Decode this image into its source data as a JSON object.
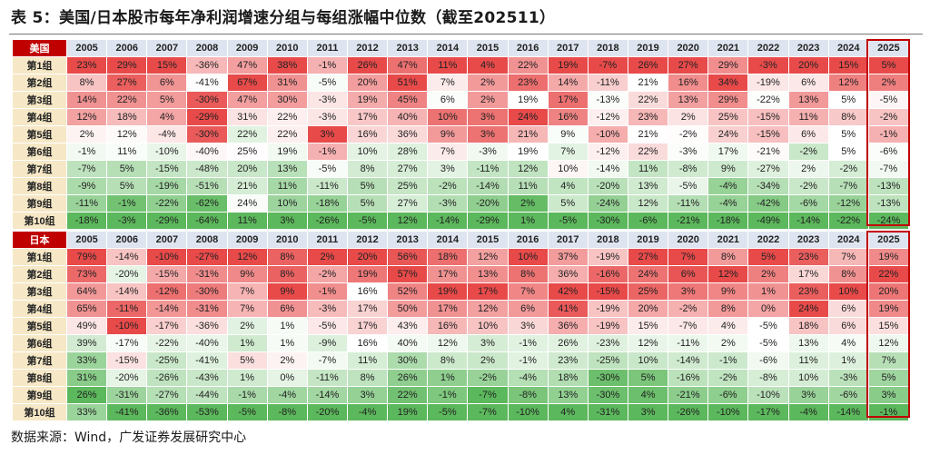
{
  "title": "表 5：美国/日本股市每年净利润增速分组与每组涨幅中位数（截至202511）",
  "source": "数据来源：Wind，广发证券发展研究中心",
  "colors": {
    "corner": "#c00000",
    "header": "#dfe5f0",
    "row_label": "#f6e8c6",
    "high": "#e84a4a",
    "low": "#5cb85c",
    "mid": "#ffffff",
    "highlight_border": "#c00000"
  },
  "years": [
    "2005",
    "2006",
    "2007",
    "2008",
    "2009",
    "2010",
    "2011",
    "2012",
    "2013",
    "2014",
    "2015",
    "2016",
    "2017",
    "2018",
    "2019",
    "2020",
    "2021",
    "2022",
    "2023",
    "2024",
    "2025"
  ],
  "groups": [
    "第1组",
    "第2组",
    "第3组",
    "第4组",
    "第5组",
    "第6组",
    "第7组",
    "第8组",
    "第9组",
    "第10组"
  ],
  "tables": [
    {
      "label": "美国",
      "rows": [
        [
          "23%",
          "29%",
          "15%",
          "-36%",
          "47%",
          "38%",
          "-1%",
          "26%",
          "47%",
          "11%",
          "4%",
          "22%",
          "19%",
          "-7%",
          "26%",
          "27%",
          "29%",
          "-3%",
          "20%",
          "15%",
          "5%"
        ],
        [
          "8%",
          "27%",
          "6%",
          "-41%",
          "67%",
          "31%",
          "-5%",
          "20%",
          "51%",
          "7%",
          "2%",
          "23%",
          "14%",
          "-11%",
          "21%",
          "16%",
          "34%",
          "-19%",
          "6%",
          "12%",
          "2%"
        ],
        [
          "14%",
          "22%",
          "5%",
          "-30%",
          "47%",
          "30%",
          "-3%",
          "19%",
          "45%",
          "6%",
          "2%",
          "19%",
          "17%",
          "-13%",
          "22%",
          "13%",
          "29%",
          "-22%",
          "13%",
          "5%",
          "-5%"
        ],
        [
          "12%",
          "18%",
          "4%",
          "-29%",
          "31%",
          "22%",
          "-3%",
          "17%",
          "40%",
          "10%",
          "3%",
          "24%",
          "16%",
          "-12%",
          "23%",
          "2%",
          "25%",
          "-15%",
          "11%",
          "8%",
          "-2%"
        ],
        [
          "2%",
          "12%",
          "-4%",
          "-30%",
          "22%",
          "22%",
          "3%",
          "16%",
          "36%",
          "9%",
          "3%",
          "21%",
          "9%",
          "-10%",
          "21%",
          "-2%",
          "24%",
          "-15%",
          "6%",
          "5%",
          "-1%"
        ],
        [
          "-1%",
          "11%",
          "-10%",
          "-40%",
          "25%",
          "19%",
          "-1%",
          "10%",
          "28%",
          "7%",
          "-3%",
          "19%",
          "7%",
          "-12%",
          "22%",
          "-3%",
          "17%",
          "-21%",
          "-2%",
          "5%",
          "-6%"
        ],
        [
          "-7%",
          "5%",
          "-15%",
          "-48%",
          "20%",
          "13%",
          "-5%",
          "8%",
          "27%",
          "3%",
          "-11%",
          "12%",
          "10%",
          "-14%",
          "11%",
          "-8%",
          "9%",
          "-27%",
          "2%",
          "-2%",
          "-7%"
        ],
        [
          "-9%",
          "5%",
          "-19%",
          "-51%",
          "21%",
          "11%",
          "-11%",
          "5%",
          "25%",
          "-2%",
          "-14%",
          "11%",
          "4%",
          "-20%",
          "13%",
          "-5%",
          "-4%",
          "-34%",
          "-2%",
          "-7%",
          "-13%"
        ],
        [
          "-11%",
          "-1%",
          "-22%",
          "-62%",
          "24%",
          "10%",
          "-18%",
          "5%",
          "27%",
          "-3%",
          "-20%",
          "2%",
          "5%",
          "-24%",
          "12%",
          "-11%",
          "-4%",
          "-42%",
          "-6%",
          "-12%",
          "-13%"
        ],
        [
          "-18%",
          "-3%",
          "-29%",
          "-64%",
          "11%",
          "3%",
          "-26%",
          "-5%",
          "12%",
          "-14%",
          "-29%",
          "1%",
          "-5%",
          "-30%",
          "-6%",
          "-21%",
          "-18%",
          "-49%",
          "-14%",
          "-22%",
          "-24%"
        ]
      ]
    },
    {
      "label": "日本",
      "rows": [
        [
          "79%",
          "-14%",
          "-10%",
          "-27%",
          "12%",
          "8%",
          "2%",
          "20%",
          "56%",
          "18%",
          "12%",
          "10%",
          "37%",
          "-19%",
          "27%",
          "7%",
          "8%",
          "5%",
          "23%",
          "7%",
          "19%"
        ],
        [
          "73%",
          "-20%",
          "-15%",
          "-31%",
          "9%",
          "8%",
          "-2%",
          "19%",
          "57%",
          "17%",
          "13%",
          "8%",
          "36%",
          "-16%",
          "24%",
          "6%",
          "12%",
          "2%",
          "17%",
          "8%",
          "22%"
        ],
        [
          "64%",
          "-14%",
          "-12%",
          "-30%",
          "7%",
          "9%",
          "-1%",
          "16%",
          "52%",
          "19%",
          "17%",
          "7%",
          "42%",
          "-15%",
          "25%",
          "3%",
          "9%",
          "1%",
          "23%",
          "10%",
          "20%"
        ],
        [
          "65%",
          "-11%",
          "-14%",
          "-31%",
          "7%",
          "6%",
          "-3%",
          "17%",
          "50%",
          "17%",
          "12%",
          "6%",
          "41%",
          "-19%",
          "20%",
          "-2%",
          "8%",
          "0%",
          "24%",
          "6%",
          "19%"
        ],
        [
          "49%",
          "-10%",
          "-17%",
          "-36%",
          "2%",
          "1%",
          "-5%",
          "17%",
          "43%",
          "16%",
          "10%",
          "3%",
          "36%",
          "-19%",
          "15%",
          "-7%",
          "4%",
          "-5%",
          "18%",
          "6%",
          "15%"
        ],
        [
          "39%",
          "-17%",
          "-22%",
          "-40%",
          "1%",
          "1%",
          "-9%",
          "16%",
          "40%",
          "12%",
          "3%",
          "-1%",
          "26%",
          "-23%",
          "12%",
          "-11%",
          "2%",
          "-5%",
          "13%",
          "4%",
          "12%"
        ],
        [
          "33%",
          "-15%",
          "-25%",
          "-41%",
          "5%",
          "2%",
          "-7%",
          "11%",
          "30%",
          "8%",
          "2%",
          "-1%",
          "23%",
          "-25%",
          "10%",
          "-14%",
          "-1%",
          "-6%",
          "11%",
          "1%",
          "7%"
        ],
        [
          "31%",
          "-20%",
          "-26%",
          "-43%",
          "1%",
          "0%",
          "-11%",
          "8%",
          "26%",
          "1%",
          "-2%",
          "-4%",
          "18%",
          "-30%",
          "5%",
          "-16%",
          "-2%",
          "-8%",
          "10%",
          "-3%",
          "5%"
        ],
        [
          "26%",
          "-31%",
          "-27%",
          "-44%",
          "-1%",
          "-4%",
          "-14%",
          "3%",
          "22%",
          "-1%",
          "-7%",
          "-8%",
          "13%",
          "-30%",
          "4%",
          "-21%",
          "-6%",
          "-10%",
          "3%",
          "-6%",
          "3%"
        ],
        [
          "33%",
          "-41%",
          "-36%",
          "-53%",
          "-5%",
          "-8%",
          "-20%",
          "-4%",
          "19%",
          "-5%",
          "-7%",
          "-10%",
          "4%",
          "-31%",
          "3%",
          "-26%",
          "-10%",
          "-17%",
          "-4%",
          "-14%",
          "-1%"
        ]
      ]
    }
  ]
}
